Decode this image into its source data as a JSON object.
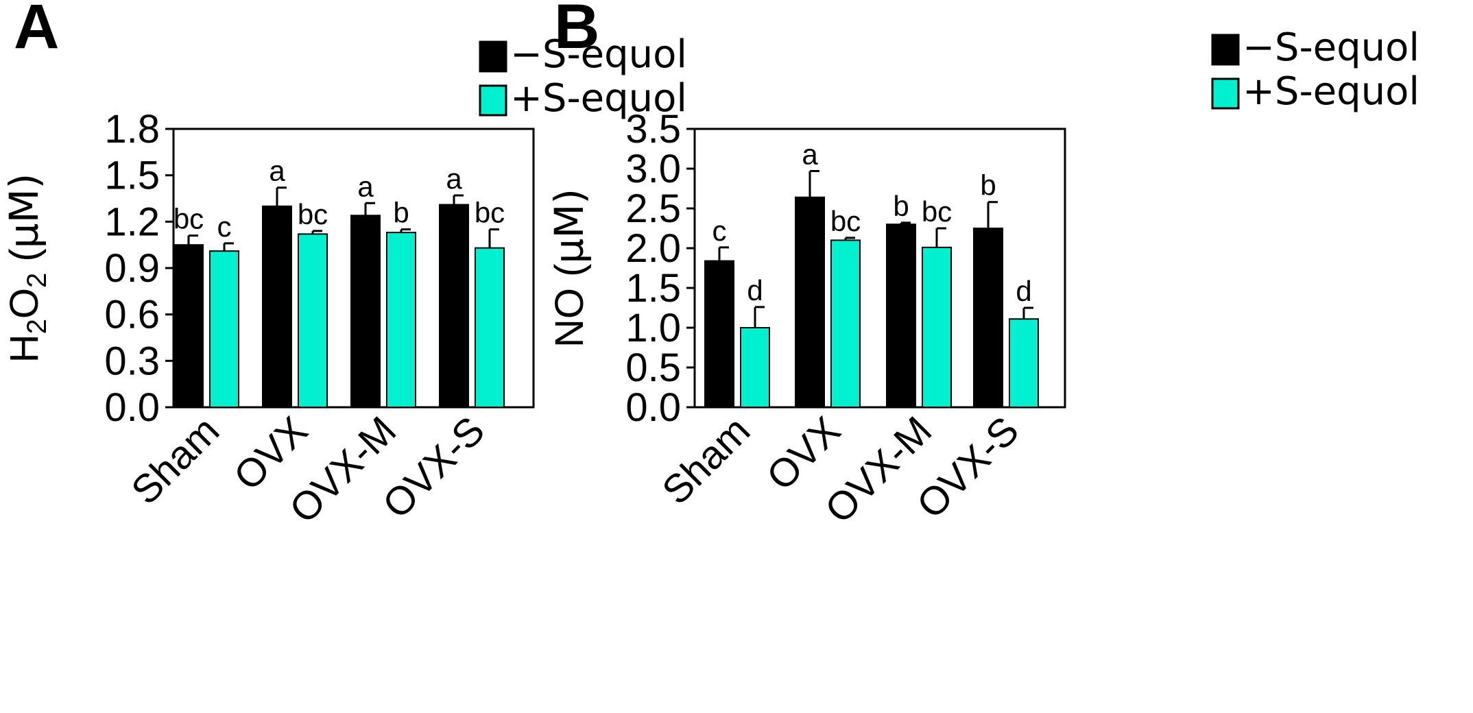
{
  "chart_data": [
    {
      "type": "bar",
      "panel_label": "A",
      "ylabel_parts": [
        "H",
        "2",
        "O",
        "2",
        " (",
        "µM)"
      ],
      "ylim": [
        0,
        1.8
      ],
      "yticks": [
        "0.0",
        "0.3",
        "0.6",
        "0.9",
        "1.2",
        "1.5",
        "1.8"
      ],
      "categories": [
        "Sham",
        "OVX",
        "OVX-M",
        "OVX-S"
      ],
      "grid": false,
      "legend_placement": "top-right",
      "series": [
        {
          "name": "−S-equol",
          "color": "#000000",
          "values": [
            1.05,
            1.3,
            1.24,
            1.31
          ],
          "errors": [
            0.06,
            0.12,
            0.08,
            0.06
          ],
          "labels": [
            "bc",
            "a",
            "a",
            "a"
          ]
        },
        {
          "name": "+S-equol",
          "color": "#00f0d0",
          "values": [
            1.01,
            1.12,
            1.13,
            1.03
          ],
          "errors": [
            0.05,
            0.02,
            0.02,
            0.12
          ],
          "labels": [
            "c",
            "bc",
            "b",
            "bc"
          ]
        }
      ]
    },
    {
      "type": "bar",
      "panel_label": "B",
      "ylabel_parts": [
        "NO (",
        "µM)"
      ],
      "ylim": [
        0,
        3.5
      ],
      "yticks": [
        "0.0",
        "0.5",
        "1.0",
        "1.5",
        "2.0",
        "2.5",
        "3.0",
        "3.5"
      ],
      "categories": [
        "Sham",
        "OVX",
        "OVX-M",
        "OVX-S"
      ],
      "grid": false,
      "legend_placement": "top-right",
      "series": [
        {
          "name": "−S-equol",
          "color": "#000000",
          "values": [
            1.84,
            2.64,
            2.3,
            2.25
          ],
          "errors": [
            0.17,
            0.33,
            0.02,
            0.33
          ],
          "labels": [
            "c",
            "a",
            "b",
            "b"
          ]
        },
        {
          "name": "+S-equol",
          "color": "#00f0d0",
          "values": [
            1.0,
            2.1,
            2.01,
            1.11
          ],
          "errors": [
            0.26,
            0.03,
            0.24,
            0.14
          ],
          "labels": [
            "d",
            "bc",
            "bc",
            "d"
          ]
        }
      ]
    }
  ]
}
